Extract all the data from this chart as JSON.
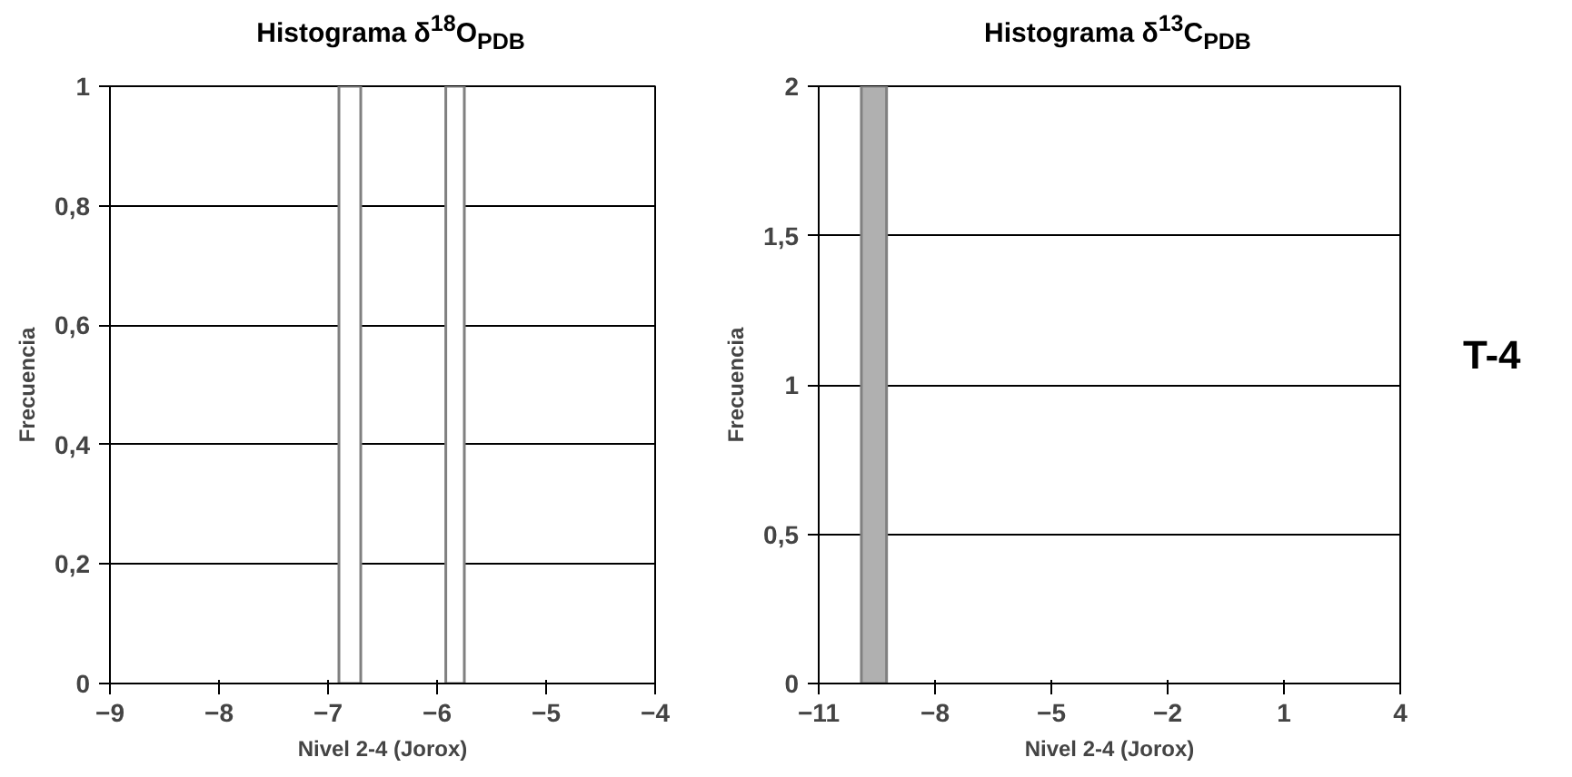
{
  "chart_data": [
    {
      "type": "histogram",
      "title": "Histograma δ$^{18}$O$_{PDB}$",
      "xlabel": "Nivel 2-4 (Jorox)",
      "ylabel": "Frecuencia",
      "bins": [
        -6.9,
        -6.7,
        -5.92,
        -5.75
      ],
      "values": [
        1,
        0,
        1
      ],
      "color": "#ffffff",
      "xlim": [
        -9,
        -4
      ],
      "xticks": [
        -9,
        -8,
        -7,
        -6,
        -5,
        -4
      ],
      "ylim": [
        0,
        1
      ],
      "yticks": [
        0,
        {
          "value": 0.2,
          "label": "0,2"
        },
        {
          "value": 0.4,
          "label": "0,4"
        },
        {
          "value": 0.6,
          "label": "0,6"
        },
        {
          "value": 0.8,
          "label": "0,8"
        },
        1
      ],
      "grid": "y"
    },
    {
      "type": "histogram",
      "title": "Histograma δ$^{13}$C$_{PDB}$",
      "xlabel": "Nivel 2-4 (Jorox)",
      "ylabel": "Frecuencia",
      "bins": [
        -9.9,
        -9.25
      ],
      "values": [
        2
      ],
      "color": "#b0b0b0",
      "xlim": [
        -11,
        4
      ],
      "xticks": [
        -11,
        -8,
        -5,
        -2,
        1,
        4
      ],
      "ylim": [
        0,
        2
      ],
      "yticks": [
        0,
        {
          "value": 0.5,
          "label": "0,5"
        },
        1,
        {
          "value": 1.5,
          "label": "1,5"
        },
        2
      ],
      "grid": "y",
      "annotations": [
        "T-4"
      ]
    }
  ]
}
